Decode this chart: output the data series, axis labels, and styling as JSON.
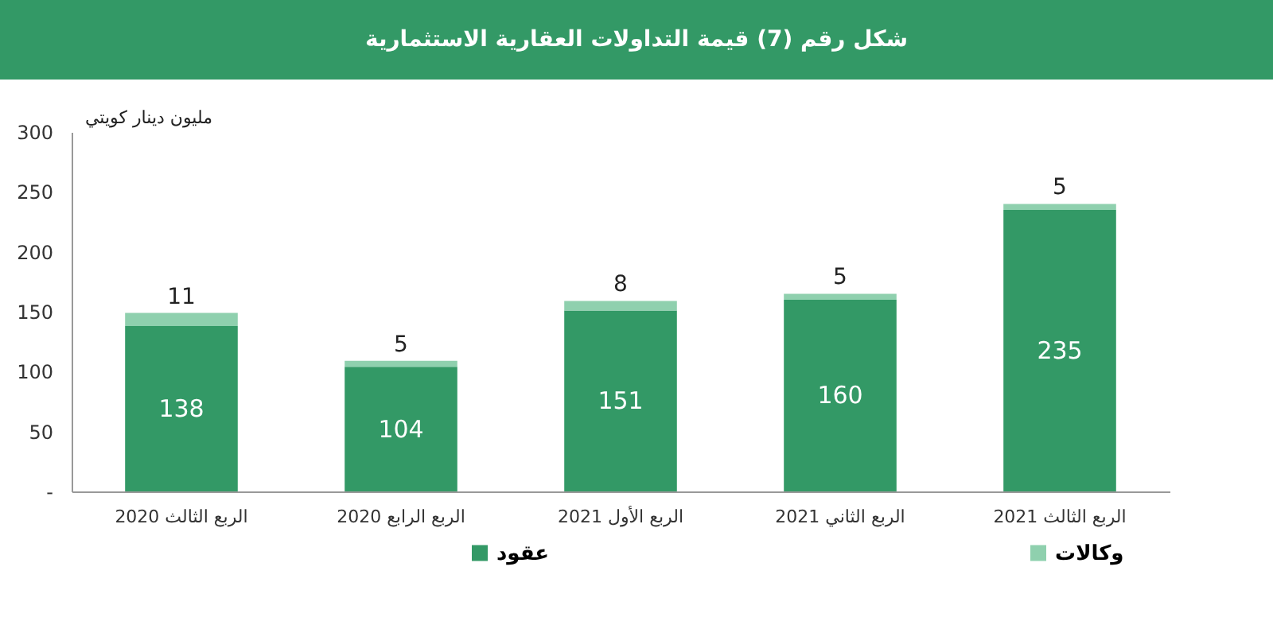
{
  "chart_data": {
    "type": "bar",
    "title": "شكل رقم (7) قيمة التداولات العقارية الاستثمارية",
    "ylabel": "مليون دينار كويتي",
    "categories": [
      "الربع الثالث 2020",
      "الربع الرابع 2020",
      "الربع الأول 2021",
      "الربع الثاني 2021",
      "الربع الثالث 2021"
    ],
    "stacked": true,
    "series": [
      {
        "name": "عقود",
        "color": "#339966",
        "values": [
          138,
          104,
          151,
          160,
          235
        ]
      },
      {
        "name": "وكالات",
        "color": "#8fd0ae",
        "values": [
          11,
          5,
          8,
          5,
          5
        ]
      }
    ],
    "ylim": [
      0,
      300
    ],
    "yticks": [
      {
        "value": 0,
        "label": "-"
      },
      50,
      100,
      150,
      200,
      250,
      300
    ],
    "data_labels": true,
    "grid": false,
    "legend": "bottom"
  }
}
